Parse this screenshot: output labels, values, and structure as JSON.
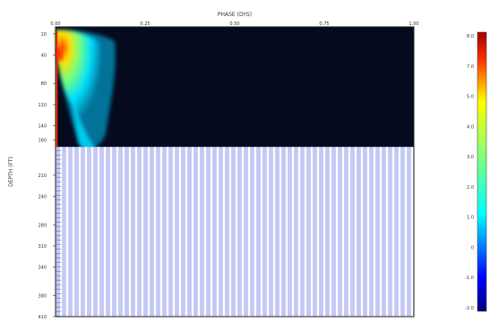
{
  "chart_data": {
    "type": "heatmap",
    "title": "",
    "xlabel": "PHASE (DYS)",
    "ylabel": "DEPTH (FT)",
    "xlim": [
      0.0,
      1.0
    ],
    "x_ticks": [
      "0.00",
      "0.25",
      "0.50",
      "0.75",
      "1.00"
    ],
    "ylim": [
      0,
      410
    ],
    "y_ticks": [
      "10",
      "40",
      "80",
      "110",
      "140",
      "160",
      "210",
      "240",
      "280",
      "310",
      "340",
      "380",
      "410"
    ],
    "data_region_depth_range": [
      0,
      170
    ],
    "missing_depth_range": [
      170,
      410
    ],
    "colorbar": {
      "ticks": [
        "8.0",
        "7.0",
        "5.0",
        "4.0",
        "3.0",
        "2.0",
        "1.0",
        "0",
        "-1.0",
        "-2.0"
      ],
      "range": [
        -2.0,
        8.0
      ],
      "colormap": "jet"
    },
    "background_color": "#050a1e",
    "missing_fill_color": "#c4c8f4"
  }
}
